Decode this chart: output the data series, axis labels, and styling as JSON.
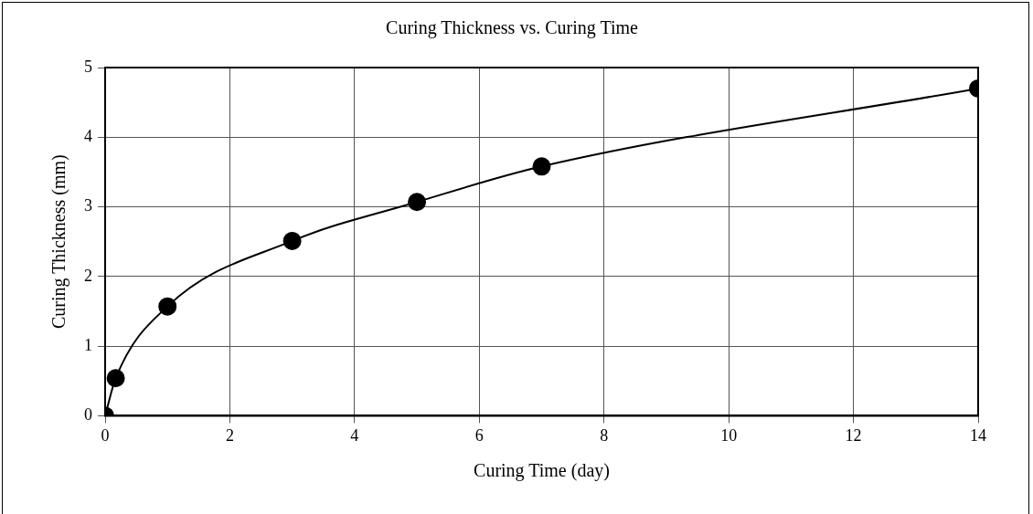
{
  "chart_data": {
    "type": "line",
    "title": "Curing Thickness vs. Curing Time",
    "xlabel": "Curing Time (day)",
    "ylabel": "Curing Thickness (mm)",
    "x": [
      0,
      0.17,
      1,
      3,
      5,
      7,
      14
    ],
    "series": [
      {
        "color": "#000000",
        "values": [
          0,
          0.54,
          1.57,
          2.51,
          3.07,
          3.58,
          4.7
        ]
      }
    ],
    "xlim": [
      0,
      14
    ],
    "xticks": [
      0,
      2,
      4,
      6,
      8,
      10,
      12,
      14
    ],
    "ylim": [
      0,
      5
    ],
    "yticks": [
      0,
      1,
      2,
      3,
      4,
      5
    ],
    "grid": true,
    "legend": false,
    "marker": "circle",
    "line_style": "solid"
  }
}
